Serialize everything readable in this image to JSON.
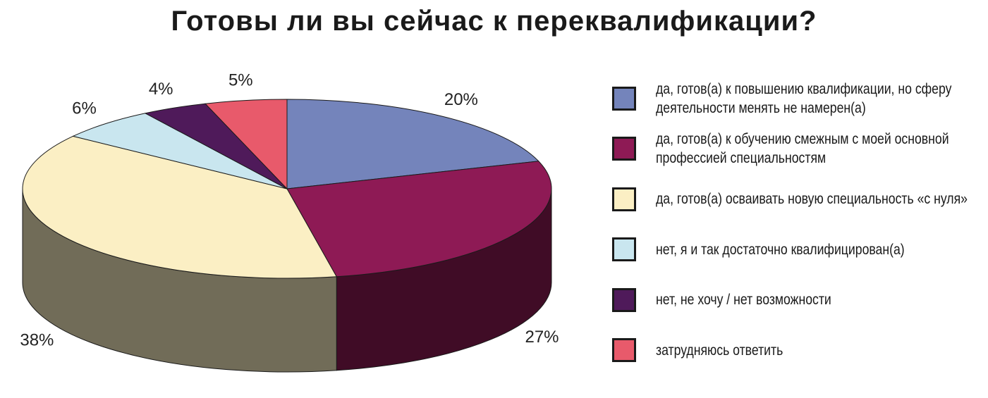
{
  "chart_data": {
    "type": "pie",
    "title": "Готовы ли вы сейчас к переквалификации?",
    "series": [
      {
        "name": "да, готов(а) к повышению квалификации, но сферу деятельности менять не намерен(а)",
        "color": "#7484bb",
        "values": [
          20
        ],
        "value_labels": [
          "20%"
        ]
      },
      {
        "name": "да, готов(а) к обучению смежным с моей основной профессией специальностям",
        "color": "#8e1a55",
        "values": [
          27
        ],
        "value_labels": [
          "27%"
        ]
      },
      {
        "name": "да, готов(а) осваивать новую специальность «с нуля»",
        "color": "#fbefc4",
        "values": [
          38
        ],
        "value_labels": [
          "38%"
        ]
      },
      {
        "name": "нет, я и так достаточно квалифицирован(а)",
        "color": "#c9e6ef",
        "values": [
          6
        ],
        "value_labels": [
          "6%"
        ]
      },
      {
        "name": "нет, не хочу / нет возможности",
        "color": "#4f1a5a",
        "values": [
          4
        ],
        "value_labels": [
          "4%"
        ]
      },
      {
        "name": "затрудняюсь ответить",
        "color": "#e85a6b",
        "values": [
          5
        ],
        "value_labels": [
          "5%"
        ]
      }
    ],
    "legend": "right"
  }
}
